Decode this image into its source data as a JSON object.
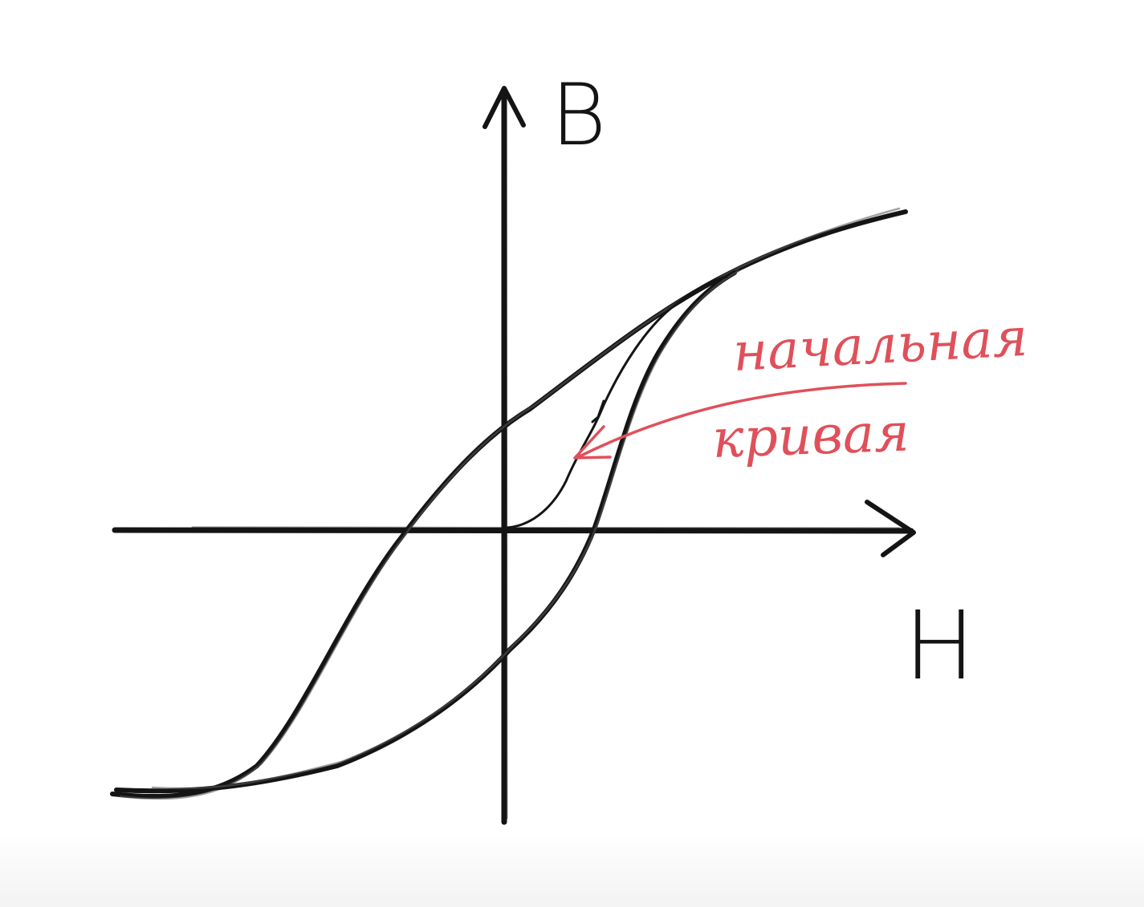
{
  "axes": {
    "y_label": "B",
    "x_label": "H"
  },
  "annotation": {
    "line1": "начальная",
    "line2": "кривая"
  },
  "colors": {
    "ink": "#141414",
    "ink_light": "#5a5a5a",
    "annotation": "#e0505a",
    "background": "#ffffff"
  }
}
